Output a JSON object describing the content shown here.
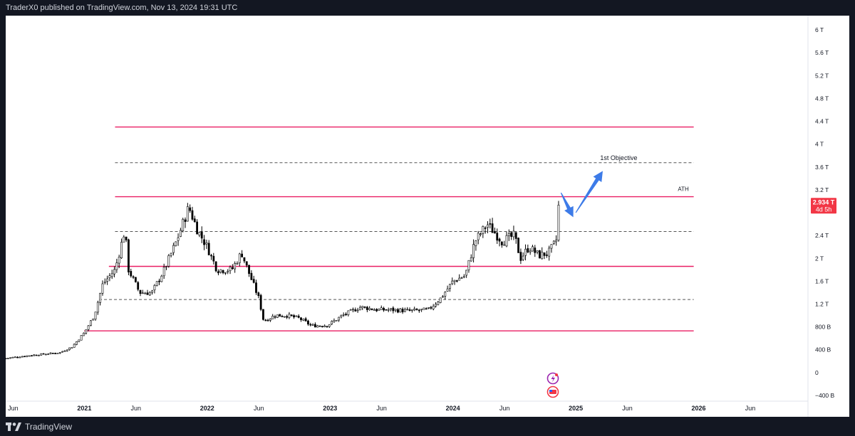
{
  "header": {
    "publisher_text": "TraderX0 published on TradingView.com, Nov 13, 2024 19:31 UTC"
  },
  "footer": {
    "brand": "TradingView"
  },
  "chart_data": {
    "type": "candlestick",
    "y_axis": {
      "ticks": [
        {
          "value": 6000,
          "label": "6 T"
        },
        {
          "value": 5600,
          "label": "5.6 T"
        },
        {
          "value": 5200,
          "label": "5.2 T"
        },
        {
          "value": 4800,
          "label": "4.8 T"
        },
        {
          "value": 4400,
          "label": "4.4 T"
        },
        {
          "value": 4000,
          "label": "4 T"
        },
        {
          "value": 3600,
          "label": "3.6 T"
        },
        {
          "value": 3200,
          "label": "3.2 T"
        },
        {
          "value": 2400,
          "label": "2.4 T"
        },
        {
          "value": 2000,
          "label": "2 T"
        },
        {
          "value": 1600,
          "label": "1.6 T"
        },
        {
          "value": 1200,
          "label": "1.2 T"
        },
        {
          "value": 800,
          "label": "800 B"
        },
        {
          "value": 400,
          "label": "400 B"
        },
        {
          "value": 0,
          "label": "0"
        },
        {
          "value": -400,
          "label": "−400 B"
        }
      ],
      "unit": "billions",
      "range": [
        -500,
        6250
      ]
    },
    "x_axis": {
      "ticks": [
        {
          "value": 2020.42,
          "label": "Jun",
          "bold": false
        },
        {
          "value": 2021.0,
          "label": "2021",
          "bold": true
        },
        {
          "value": 2021.42,
          "label": "Jun",
          "bold": false
        },
        {
          "value": 2022.0,
          "label": "2022",
          "bold": true
        },
        {
          "value": 2022.42,
          "label": "Jun",
          "bold": false
        },
        {
          "value": 2023.0,
          "label": "2023",
          "bold": true
        },
        {
          "value": 2023.42,
          "label": "Jun",
          "bold": false
        },
        {
          "value": 2024.0,
          "label": "2024",
          "bold": true
        },
        {
          "value": 2024.42,
          "label": "Jun",
          "bold": false
        },
        {
          "value": 2025.0,
          "label": "2025",
          "bold": true
        },
        {
          "value": 2025.42,
          "label": "Jun",
          "bold": false
        },
        {
          "value": 2026.0,
          "label": "2026",
          "bold": true
        },
        {
          "value": 2026.42,
          "label": "Jun",
          "bold": false
        }
      ],
      "range": [
        2020.36,
        2026.89
      ]
    },
    "price_label": {
      "value": 2934,
      "text": "2.934 T",
      "countdown": "4d 5h",
      "color": "#f23645"
    },
    "key_points": [
      {
        "x": 2020.36,
        "y": 250
      },
      {
        "x": 2020.55,
        "y": 300
      },
      {
        "x": 2020.7,
        "y": 330
      },
      {
        "x": 2020.8,
        "y": 350
      },
      {
        "x": 2020.9,
        "y": 450
      },
      {
        "x": 2021.0,
        "y": 700
      },
      {
        "x": 2021.08,
        "y": 1000
      },
      {
        "x": 2021.15,
        "y": 1550
      },
      {
        "x": 2021.25,
        "y": 1800
      },
      {
        "x": 2021.33,
        "y": 2500
      },
      {
        "x": 2021.36,
        "y": 1800
      },
      {
        "x": 2021.45,
        "y": 1400
      },
      {
        "x": 2021.55,
        "y": 1400
      },
      {
        "x": 2021.65,
        "y": 1800
      },
      {
        "x": 2021.75,
        "y": 2300
      },
      {
        "x": 2021.85,
        "y": 2900
      },
      {
        "x": 2021.92,
        "y": 2500
      },
      {
        "x": 2022.0,
        "y": 2200
      },
      {
        "x": 2022.08,
        "y": 1800
      },
      {
        "x": 2022.2,
        "y": 1800
      },
      {
        "x": 2022.28,
        "y": 2100
      },
      {
        "x": 2022.33,
        "y": 1800
      },
      {
        "x": 2022.42,
        "y": 1300
      },
      {
        "x": 2022.46,
        "y": 900
      },
      {
        "x": 2022.55,
        "y": 1000
      },
      {
        "x": 2022.65,
        "y": 1000
      },
      {
        "x": 2022.75,
        "y": 950
      },
      {
        "x": 2022.85,
        "y": 820
      },
      {
        "x": 2022.98,
        "y": 830
      },
      {
        "x": 2023.1,
        "y": 1000
      },
      {
        "x": 2023.25,
        "y": 1150
      },
      {
        "x": 2023.38,
        "y": 1100
      },
      {
        "x": 2023.5,
        "y": 1100
      },
      {
        "x": 2023.65,
        "y": 1080
      },
      {
        "x": 2023.8,
        "y": 1100
      },
      {
        "x": 2023.9,
        "y": 1300
      },
      {
        "x": 2024.0,
        "y": 1600
      },
      {
        "x": 2024.1,
        "y": 1700
      },
      {
        "x": 2024.18,
        "y": 2300
      },
      {
        "x": 2024.28,
        "y": 2600
      },
      {
        "x": 2024.4,
        "y": 2300
      },
      {
        "x": 2024.5,
        "y": 2400
      },
      {
        "x": 2024.55,
        "y": 2000
      },
      {
        "x": 2024.62,
        "y": 2200
      },
      {
        "x": 2024.7,
        "y": 2050
      },
      {
        "x": 2024.78,
        "y": 2100
      },
      {
        "x": 2024.84,
        "y": 2300
      },
      {
        "x": 2024.87,
        "y": 2934
      }
    ],
    "levels": [
      {
        "value": 4300,
        "style": "solid",
        "color": "#e91e63",
        "x_start": 2021.25,
        "x_end": 2025.96
      },
      {
        "value": 3675,
        "style": "dashed",
        "color": "#555555",
        "x_start": 2021.25,
        "x_end": 2025.96
      },
      {
        "value": 3080,
        "style": "solid",
        "color": "#e91e63",
        "x_start": 2021.25,
        "x_end": 2025.96
      },
      {
        "value": 2470,
        "style": "dashed",
        "color": "#555555",
        "x_start": 2021.25,
        "x_end": 2025.96
      },
      {
        "value": 1860,
        "style": "solid",
        "color": "#e91e63",
        "x_start": 2021.2,
        "x_end": 2025.96
      },
      {
        "value": 1280,
        "style": "dashed",
        "color": "#555555",
        "x_start": 2021.12,
        "x_end": 2025.96
      },
      {
        "value": 730,
        "style": "solid",
        "color": "#e91e63",
        "x_start": 2021.0,
        "x_end": 2025.96
      }
    ],
    "annotations": [
      {
        "text": "1st Objective",
        "x": 2025.35,
        "y": 3700
      },
      {
        "text": "ATH",
        "x": 2025.92,
        "y": 3155
      }
    ],
    "arrows": [
      {
        "from": {
          "x": 2024.88,
          "y": 3150
        },
        "to": {
          "x": 2024.98,
          "y": 2720
        },
        "color": "#3d7be8"
      },
      {
        "from": {
          "x": 2025.0,
          "y": 2800
        },
        "to": {
          "x": 2025.22,
          "y": 3530
        },
        "color": "#3d7be8"
      }
    ],
    "grid": false,
    "legend": "none"
  }
}
